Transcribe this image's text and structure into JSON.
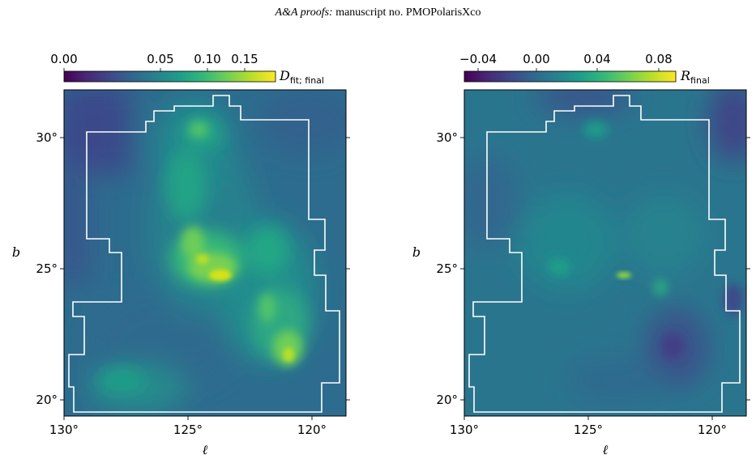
{
  "header": {
    "journal": "A&A proofs:",
    "manuscript": "manuscript no. PMOPolarisXco"
  },
  "colors": {
    "viridis": [
      "#440154",
      "#482878",
      "#3e4989",
      "#31688e",
      "#26828e",
      "#1f9e89",
      "#35b779",
      "#6ece58",
      "#b5de2b",
      "#fde725"
    ],
    "boundary": "#ffffff"
  },
  "chart_data": [
    {
      "type": "heatmap",
      "colormap": "viridis",
      "colorbar": {
        "label_main": "D",
        "label_sub": "fit; final",
        "ticks": [
          "0.00",
          "0.05",
          "0.10",
          "0.15"
        ],
        "tick_values": [
          0.0,
          0.05,
          0.1,
          0.15
        ],
        "scale": "sqrt-like (non-linear)",
        "range": [
          0.0,
          0.18
        ]
      },
      "xlabel": "ℓ",
      "ylabel": "b",
      "xticks": [
        "130°",
        "125°",
        "120°"
      ],
      "xtick_values": [
        130,
        125,
        120
      ],
      "yticks": [
        "30°",
        "25°",
        "20°"
      ],
      "ytick_values": [
        30,
        25,
        20
      ],
      "xlim": [
        130,
        118.6
      ],
      "ylim": [
        19.4,
        31.8
      ],
      "features": "bright emission ridge near (123.5°, 24.7°), extended structure toward (121°, 22°); faint near corners"
    },
    {
      "type": "heatmap",
      "colormap": "viridis",
      "colorbar": {
        "label_main": "R",
        "label_sub": "final",
        "ticks": [
          "−0.04",
          "0.00",
          "0.04",
          "0.08"
        ],
        "tick_values": [
          -0.04,
          0.0,
          0.04,
          0.08
        ],
        "scale": "linear",
        "range": [
          -0.045,
          0.1
        ]
      },
      "xlabel": "ℓ",
      "ylabel": "b",
      "xticks": [
        "130°",
        "125°",
        "120°"
      ],
      "xtick_values": [
        130,
        125,
        120
      ],
      "yticks": [
        "30°",
        "25°",
        "20°"
      ],
      "ytick_values": [
        30,
        25,
        20
      ],
      "xlim": [
        130,
        118.6
      ],
      "ylim": [
        19.4,
        31.8
      ],
      "features": "mostly uniform residual near 0; small bright spot near (123.5°, 24.8°)"
    }
  ]
}
